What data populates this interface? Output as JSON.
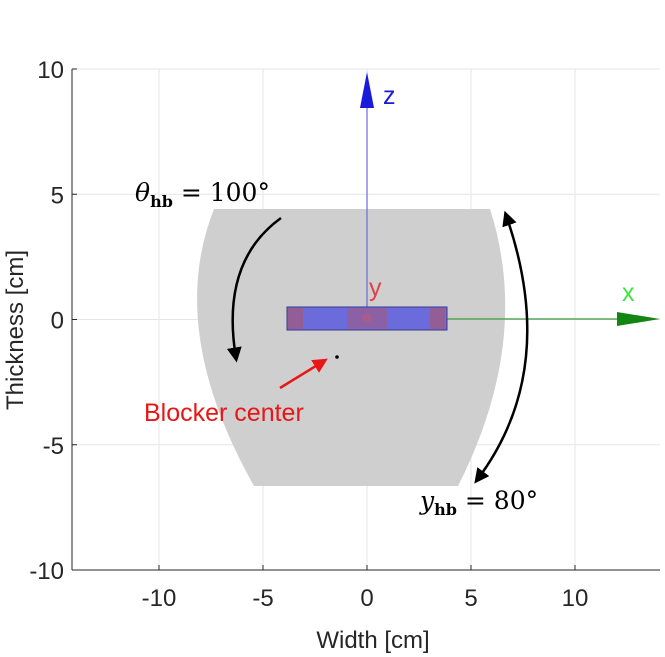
{
  "axes": {
    "xlabel": "Width [cm]",
    "ylabel": "Thickness [cm]",
    "xlim": [
      -14.5,
      13.8
    ],
    "ylim": [
      -10,
      10
    ],
    "xticks": [
      {
        "v": -10,
        "t": "-10"
      },
      {
        "v": -5,
        "t": "-5"
      },
      {
        "v": 0,
        "t": "0"
      },
      {
        "v": 5,
        "t": "5"
      },
      {
        "v": 10,
        "t": "10"
      }
    ],
    "yticks": [
      {
        "v": 10,
        "t": "10"
      },
      {
        "v": 5,
        "t": "5"
      },
      {
        "v": 0,
        "t": "0"
      },
      {
        "v": -5,
        "t": "-5"
      },
      {
        "v": -10,
        "t": "-10"
      }
    ],
    "grid": true
  },
  "labels": {
    "axis_z": "z",
    "axis_x": "x",
    "axis_y": "y",
    "theta_symbol": "θ",
    "theta_sub": "hb",
    "theta_value": " = 100°",
    "gamma_symbol": "y",
    "gamma_sub": "hb",
    "gamma_value": " = 80°",
    "blocker_center": "Blocker center"
  },
  "colors": {
    "shape_fill": "#cfcfcf",
    "blocker_fill": "#6b6bdc",
    "blocker_pad": "#a0597f",
    "z_axis": "#1a1adb",
    "x_axis": "#138513",
    "x_label": "#3ee63e",
    "y_label": "#e0404a",
    "annotation": "#e81616",
    "grid": "#e6e6e6"
  },
  "chart_data": {
    "type": "diagram",
    "blocker_center": [
      -1.5,
      -1.6
    ],
    "blocker_rect": {
      "x0": -3.8,
      "x1": 3.8,
      "y0": -0.5,
      "y1": 0.5
    }
  }
}
